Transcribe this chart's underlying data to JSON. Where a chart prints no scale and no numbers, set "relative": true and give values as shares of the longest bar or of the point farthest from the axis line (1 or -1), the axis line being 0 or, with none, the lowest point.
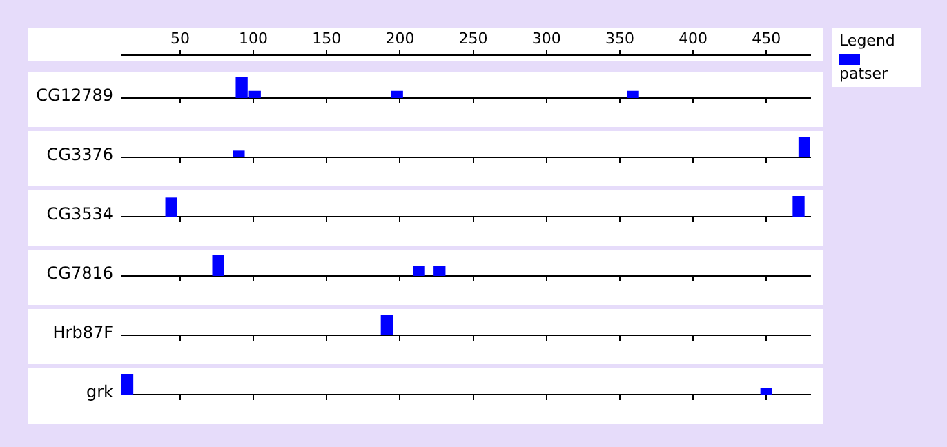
{
  "chart_data": [
    {
      "type": "bar",
      "ylabel": "CG12789",
      "xlim": [
        10,
        480
      ],
      "xticks": [
        50,
        100,
        150,
        200,
        250,
        300,
        350,
        400,
        450
      ],
      "relative": true,
      "tick_labels": "x",
      "legend": "right",
      "legend_title": "Legend",
      "series": [
        {
          "name": "patser",
          "color": "#0000ff",
          "x": [
            92,
            101,
            198,
            359
          ],
          "values": [
            1,
            0.32,
            0.32,
            0.32
          ]
        }
      ]
    },
    {
      "type": "bar",
      "ylabel": "CG3376",
      "xlim": [
        10,
        480
      ],
      "xticks": [
        50,
        100,
        150,
        200,
        250,
        300,
        350,
        400,
        450
      ],
      "relative": true,
      "tick_labels": false,
      "series": [
        {
          "color": "#0000ff",
          "x": [
            90,
            476
          ],
          "values": [
            0.3,
            1
          ]
        }
      ]
    },
    {
      "type": "bar",
      "ylabel": "CG3534",
      "xlim": [
        10,
        480
      ],
      "xticks": [
        50,
        100,
        150,
        200,
        250,
        300,
        350,
        400,
        450
      ],
      "relative": true,
      "tick_labels": false,
      "series": [
        {
          "color": "#0000ff",
          "x": [
            44,
            472
          ],
          "values": [
            0.9,
            1
          ]
        }
      ]
    },
    {
      "type": "bar",
      "ylabel": "CG7816",
      "xlim": [
        10,
        480
      ],
      "xticks": [
        50,
        100,
        150,
        200,
        250,
        300,
        350,
        400,
        450
      ],
      "relative": true,
      "tick_labels": false,
      "series": [
        {
          "color": "#0000ff",
          "x": [
            76,
            213,
            227
          ],
          "values": [
            1,
            0.46,
            0.46
          ]
        }
      ]
    },
    {
      "type": "bar",
      "ylabel": "Hrb87F",
      "xlim": [
        10,
        480
      ],
      "xticks": [
        50,
        100,
        150,
        200,
        250,
        300,
        350,
        400,
        450
      ],
      "relative": true,
      "tick_labels": false,
      "series": [
        {
          "color": "#0000ff",
          "x": [
            191
          ],
          "values": [
            1
          ]
        }
      ]
    },
    {
      "type": "bar",
      "ylabel": "grk",
      "xlim": [
        10,
        480
      ],
      "xticks": [
        50,
        100,
        150,
        200,
        250,
        300,
        350,
        400,
        450
      ],
      "relative": true,
      "tick_labels": false,
      "series": [
        {
          "color": "#0000ff",
          "x": [
            14,
            450
          ],
          "values": [
            1,
            0.3
          ]
        }
      ]
    }
  ]
}
